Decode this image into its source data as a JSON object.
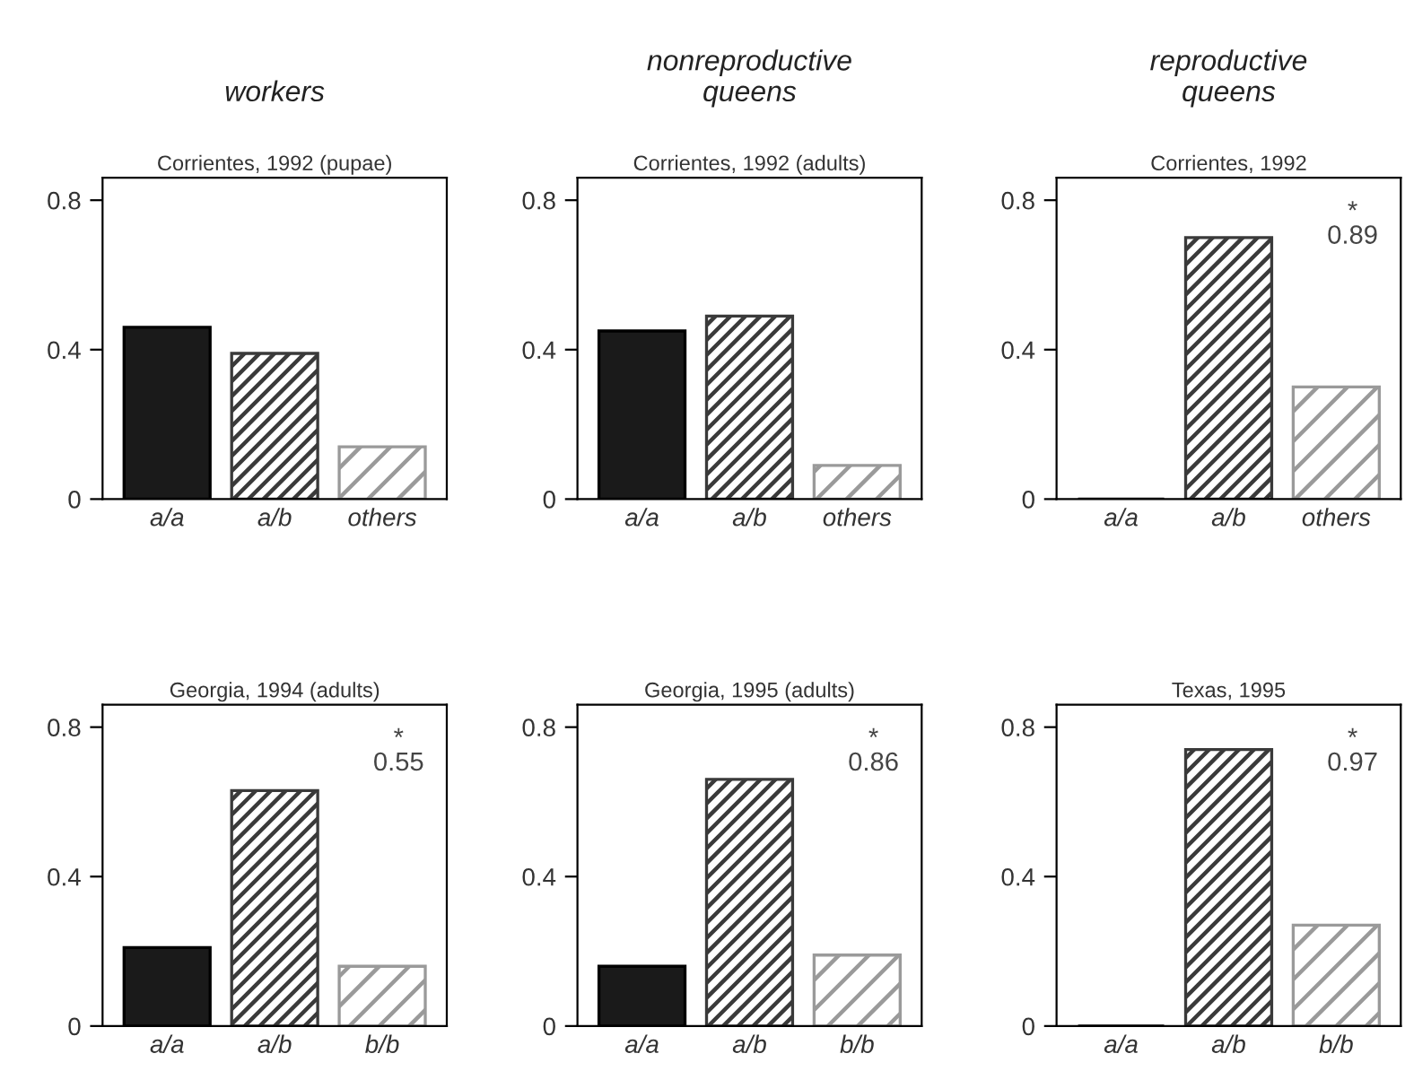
{
  "chart_data": [
    {
      "type": "bar",
      "title": "workers",
      "subtitle": "Corrientes, 1992 (pupae)",
      "categories": [
        "a/a",
        "a/b",
        "others"
      ],
      "values": [
        0.46,
        0.39,
        0.14
      ],
      "colors": [
        "#1a1a1a",
        "#3a3a3a",
        "#9a9a9a"
      ],
      "ylim": [
        0,
        0.86
      ],
      "yticks": [
        0,
        0.4,
        0.8
      ],
      "grid": false,
      "legend": false
    },
    {
      "type": "bar",
      "title": "nonreproductive\nqueens",
      "subtitle": "Corrientes, 1992 (adults)",
      "categories": [
        "a/a",
        "a/b",
        "others"
      ],
      "values": [
        0.45,
        0.49,
        0.09
      ],
      "colors": [
        "#1a1a1a",
        "#3a3a3a",
        "#9a9a9a"
      ],
      "ylim": [
        0,
        0.86
      ],
      "yticks": [
        0,
        0.4,
        0.8
      ],
      "grid": false,
      "legend": false
    },
    {
      "type": "bar",
      "title": "reproductive\nqueens",
      "subtitle": "Corrientes, 1992",
      "categories": [
        "a/a",
        "a/b",
        "others"
      ],
      "values": [
        0,
        0.7,
        0.3
      ],
      "colors": [
        "#1a1a1a",
        "#3a3a3a",
        "#9a9a9a"
      ],
      "ylim": [
        0,
        0.86
      ],
      "yticks": [
        0,
        0.4,
        0.8
      ],
      "annotations": [
        "*\n0.89"
      ],
      "grid": false,
      "legend": false
    },
    {
      "type": "bar",
      "subtitle": "Georgia, 1994 (adults)",
      "categories": [
        "a/a",
        "a/b",
        "b/b"
      ],
      "values": [
        0.21,
        0.63,
        0.16
      ],
      "colors": [
        "#1a1a1a",
        "#3a3a3a",
        "#9a9a9a"
      ],
      "ylim": [
        0,
        0.86
      ],
      "yticks": [
        0,
        0.4,
        0.8
      ],
      "annotations": [
        "*\n0.55"
      ],
      "grid": false,
      "legend": false
    },
    {
      "type": "bar",
      "subtitle": "Georgia, 1995 (adults)",
      "categories": [
        "a/a",
        "a/b",
        "b/b"
      ],
      "values": [
        0.16,
        0.66,
        0.19
      ],
      "colors": [
        "#1a1a1a",
        "#3a3a3a",
        "#9a9a9a"
      ],
      "ylim": [
        0,
        0.86
      ],
      "yticks": [
        0,
        0.4,
        0.8
      ],
      "annotations": [
        "*\n0.86"
      ],
      "grid": false,
      "legend": false
    },
    {
      "type": "bar",
      "subtitle": "Texas, 1995",
      "categories": [
        "a/a",
        "a/b",
        "b/b"
      ],
      "values": [
        0,
        0.74,
        0.27
      ],
      "colors": [
        "#1a1a1a",
        "#3a3a3a",
        "#9a9a9a"
      ],
      "ylim": [
        0,
        0.86
      ],
      "yticks": [
        0,
        0.4,
        0.8
      ],
      "annotations": [
        "*\n0.97"
      ],
      "grid": false,
      "legend": false
    }
  ]
}
